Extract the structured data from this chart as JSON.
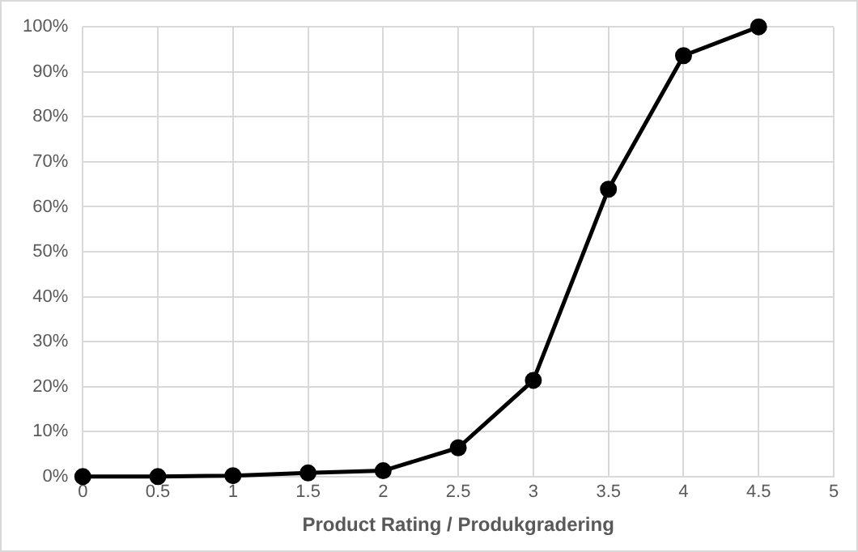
{
  "chart_data": {
    "type": "line",
    "xlabel": "Product Rating / Produkgradering",
    "x": [
      0,
      0.5,
      1,
      1.5,
      2,
      2.5,
      3,
      3.5,
      4,
      4.5
    ],
    "series": [
      {
        "color": "#000000",
        "values": [
          0,
          0,
          0.2,
          0.8,
          1.3,
          6.4,
          21.4,
          63.9,
          93.6,
          100
        ]
      }
    ],
    "xlim": [
      0,
      5
    ],
    "xticks": [
      0,
      0.5,
      1,
      1.5,
      2,
      2.5,
      3,
      3.5,
      4,
      4.5,
      5
    ],
    "ylim": [
      0,
      100
    ],
    "yticks": [
      {
        "value": 0,
        "label": "0%"
      },
      {
        "value": 10,
        "label": "10%"
      },
      {
        "value": 20,
        "label": "20%"
      },
      {
        "value": 30,
        "label": "30%"
      },
      {
        "value": 40,
        "label": "40%"
      },
      {
        "value": 50,
        "label": "50%"
      },
      {
        "value": 60,
        "label": "60%"
      },
      {
        "value": 70,
        "label": "70%"
      },
      {
        "value": 80,
        "label": "80%"
      },
      {
        "value": 90,
        "label": "90%"
      },
      {
        "value": 100,
        "label": "100%"
      }
    ],
    "grid": true,
    "legend": false,
    "marker": "circle",
    "line_style": "solid"
  }
}
